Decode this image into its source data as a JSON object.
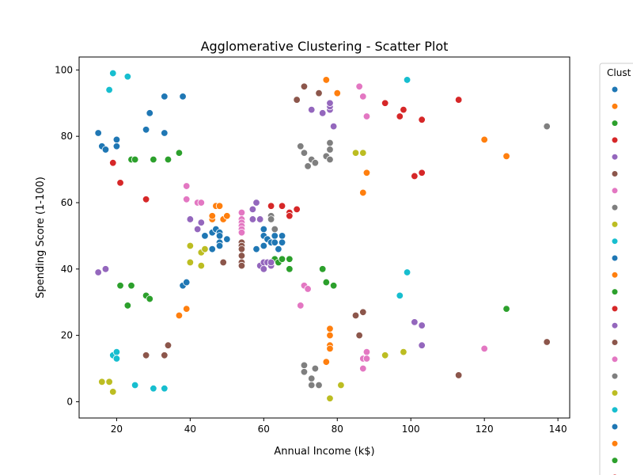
{
  "chart_data": {
    "type": "scatter",
    "title": "Agglomerative Clustering - Scatter Plot",
    "xlabel": "Annual Income (k$)",
    "ylabel": "Spending Score (1-100)",
    "xlim": [
      9.8,
      143.2
    ],
    "ylim": [
      -4.9,
      103.9
    ],
    "xticks": [
      "20",
      "40",
      "60",
      "80",
      "100",
      "120",
      "140"
    ],
    "yticks": [
      "0",
      "20",
      "40",
      "60",
      "80",
      "100"
    ],
    "grid": false,
    "legend": {
      "placement": "outside-right",
      "title": "Clust",
      "colors": [
        "#1f77b4",
        "#ff7f0e",
        "#2ca02c",
        "#d62728",
        "#9467bd",
        "#8c564b",
        "#e377c2",
        "#7f7f7f",
        "#bcbd22",
        "#17becf",
        "#1f77b4",
        "#ff7f0e",
        "#2ca02c",
        "#d62728",
        "#9467bd",
        "#8c564b",
        "#e377c2",
        "#7f7f7f",
        "#bcbd22",
        "#17becf",
        "#1f77b4",
        "#ff7f0e",
        "#2ca02c",
        "#d62728"
      ]
    },
    "series": [
      {
        "color": "#1f77b4",
        "points": [
          [
            15,
            81
          ],
          [
            16,
            77
          ],
          [
            17,
            76
          ],
          [
            20,
            79
          ],
          [
            20,
            77
          ],
          [
            28,
            82
          ],
          [
            29,
            87
          ],
          [
            33,
            92
          ],
          [
            33,
            81
          ],
          [
            38,
            92
          ],
          [
            38,
            35
          ],
          [
            39,
            36
          ],
          [
            44,
            50
          ],
          [
            46,
            51
          ],
          [
            46,
            46
          ],
          [
            47,
            52
          ],
          [
            48,
            51
          ],
          [
            48,
            50
          ],
          [
            48,
            48
          ],
          [
            48,
            47
          ],
          [
            50,
            49
          ],
          [
            58,
            46
          ],
          [
            60,
            52
          ],
          [
            60,
            50
          ],
          [
            60,
            47
          ],
          [
            61,
            49
          ],
          [
            62,
            48
          ],
          [
            63,
            50
          ],
          [
            63,
            48
          ],
          [
            64,
            46
          ],
          [
            65,
            50
          ],
          [
            65,
            48
          ]
        ]
      },
      {
        "color": "#ff7f0e",
        "points": [
          [
            37,
            26
          ],
          [
            39,
            28
          ],
          [
            46,
            55
          ],
          [
            46,
            56
          ],
          [
            47,
            59
          ],
          [
            48,
            59
          ],
          [
            49,
            55
          ],
          [
            50,
            56
          ],
          [
            77,
            97
          ],
          [
            78,
            22
          ],
          [
            78,
            20
          ],
          [
            78,
            17
          ],
          [
            78,
            16
          ],
          [
            77,
            12
          ],
          [
            80,
            93
          ],
          [
            87,
            63
          ],
          [
            88,
            69
          ],
          [
            120,
            79
          ],
          [
            126,
            74
          ]
        ]
      },
      {
        "color": "#2ca02c",
        "points": [
          [
            21,
            35
          ],
          [
            23,
            29
          ],
          [
            24,
            73
          ],
          [
            24,
            35
          ],
          [
            25,
            73
          ],
          [
            28,
            32
          ],
          [
            29,
            31
          ],
          [
            30,
            73
          ],
          [
            34,
            73
          ],
          [
            37,
            75
          ],
          [
            63,
            43
          ],
          [
            64,
            42
          ],
          [
            65,
            43
          ],
          [
            67,
            43
          ],
          [
            67,
            40
          ],
          [
            76,
            40
          ],
          [
            77,
            36
          ],
          [
            79,
            35
          ],
          [
            126,
            28
          ]
        ]
      },
      {
        "color": "#d62728",
        "points": [
          [
            19,
            72
          ],
          [
            21,
            66
          ],
          [
            28,
            61
          ],
          [
            62,
            59
          ],
          [
            65,
            59
          ],
          [
            67,
            57
          ],
          [
            67,
            56
          ],
          [
            69,
            58
          ],
          [
            93,
            90
          ],
          [
            97,
            86
          ],
          [
            98,
            88
          ],
          [
            101,
            68
          ],
          [
            103,
            85
          ],
          [
            103,
            69
          ],
          [
            113,
            91
          ]
        ]
      },
      {
        "color": "#9467bd",
        "points": [
          [
            15,
            39
          ],
          [
            17,
            40
          ],
          [
            40,
            55
          ],
          [
            42,
            52
          ],
          [
            43,
            54
          ],
          [
            57,
            58
          ],
          [
            57,
            55
          ],
          [
            58,
            60
          ],
          [
            59,
            55
          ],
          [
            59,
            41
          ],
          [
            60,
            40
          ],
          [
            60,
            42
          ],
          [
            61,
            42
          ],
          [
            62,
            41
          ],
          [
            62,
            42
          ],
          [
            73,
            88
          ],
          [
            76,
            87
          ],
          [
            78,
            88
          ],
          [
            78,
            89
          ],
          [
            78,
            90
          ],
          [
            79,
            83
          ],
          [
            101,
            24
          ],
          [
            103,
            23
          ],
          [
            103,
            17
          ]
        ]
      },
      {
        "color": "#8c564b",
        "points": [
          [
            28,
            14
          ],
          [
            33,
            14
          ],
          [
            34,
            17
          ],
          [
            49,
            42
          ],
          [
            54,
            48
          ],
          [
            54,
            47
          ],
          [
            54,
            46
          ],
          [
            54,
            44
          ],
          [
            54,
            42
          ],
          [
            54,
            41
          ],
          [
            69,
            91
          ],
          [
            71,
            95
          ],
          [
            75,
            93
          ],
          [
            85,
            26
          ],
          [
            86,
            20
          ],
          [
            87,
            27
          ],
          [
            113,
            8
          ],
          [
            137,
            18
          ]
        ]
      },
      {
        "color": "#e377c2",
        "points": [
          [
            39,
            65
          ],
          [
            39,
            61
          ],
          [
            42,
            60
          ],
          [
            43,
            60
          ],
          [
            54,
            57
          ],
          [
            54,
            55
          ],
          [
            54,
            54
          ],
          [
            54,
            53
          ],
          [
            54,
            52
          ],
          [
            54,
            51
          ],
          [
            70,
            29
          ],
          [
            71,
            35
          ],
          [
            72,
            34
          ],
          [
            86,
            95
          ],
          [
            87,
            92
          ],
          [
            87,
            13
          ],
          [
            87,
            10
          ],
          [
            88,
            86
          ],
          [
            88,
            15
          ],
          [
            88,
            13
          ],
          [
            120,
            16
          ]
        ]
      },
      {
        "color": "#7f7f7f",
        "points": [
          [
            62,
            56
          ],
          [
            62,
            55
          ],
          [
            63,
            52
          ],
          [
            70,
            77
          ],
          [
            71,
            75
          ],
          [
            71,
            11
          ],
          [
            71,
            9
          ],
          [
            72,
            71
          ],
          [
            73,
            73
          ],
          [
            73,
            7
          ],
          [
            73,
            5
          ],
          [
            74,
            72
          ],
          [
            74,
            10
          ],
          [
            75,
            5
          ],
          [
            77,
            74
          ],
          [
            78,
            78
          ],
          [
            78,
            76
          ],
          [
            78,
            73
          ],
          [
            137,
            83
          ]
        ]
      },
      {
        "color": "#bcbd22",
        "points": [
          [
            16,
            6
          ],
          [
            18,
            6
          ],
          [
            19,
            3
          ],
          [
            40,
            47
          ],
          [
            40,
            42
          ],
          [
            43,
            45
          ],
          [
            43,
            41
          ],
          [
            44,
            46
          ],
          [
            78,
            1
          ],
          [
            81,
            5
          ],
          [
            85,
            75
          ],
          [
            87,
            75
          ],
          [
            93,
            14
          ],
          [
            98,
            15
          ]
        ]
      },
      {
        "color": "#17becf",
        "points": [
          [
            18,
            94
          ],
          [
            19,
            99
          ],
          [
            19,
            14
          ],
          [
            20,
            15
          ],
          [
            20,
            13
          ],
          [
            23,
            98
          ],
          [
            25,
            5
          ],
          [
            30,
            4
          ],
          [
            33,
            4
          ],
          [
            97,
            32
          ],
          [
            99,
            97
          ],
          [
            99,
            39
          ]
        ]
      }
    ]
  }
}
